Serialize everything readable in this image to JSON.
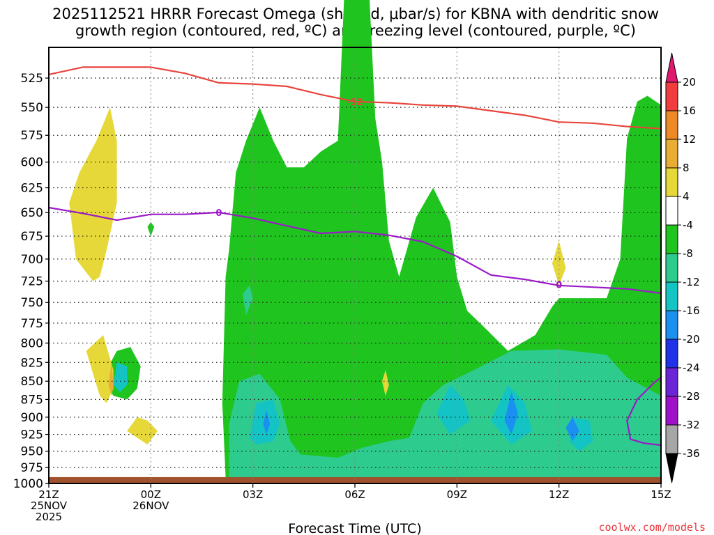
{
  "title": {
    "line1": "2025112521 HRRR Forecast Omega (shaded, μbar/s) for KBNA with dendritic snow",
    "line2": "growth region (contoured, red, ºC) and freezing level (contoured, purple, ºC)"
  },
  "credit": "coolwx.com/models",
  "chart_data": {
    "type": "heatmap",
    "title": "2025112521 HRRR Forecast Omega (shaded, μbar/s) for KBNA with dendritic snow growth region (contoured, red, ºC) and freezing level (contoured, purple, ºC)",
    "xlabel": "Forecast Time (UTC)",
    "ylabel": "",
    "x_range_hours": [
      0,
      18
    ],
    "y_axis": "pressure (mb), inverted",
    "ylim": [
      1000,
      500
    ],
    "grid": true,
    "y_ticks": [
      525,
      550,
      575,
      600,
      625,
      650,
      675,
      700,
      725,
      750,
      775,
      800,
      825,
      850,
      875,
      900,
      925,
      950,
      975,
      1000
    ],
    "x_ticks": [
      {
        "hour": 0,
        "l1": "21Z",
        "l2": "25NOV",
        "l3": "2025"
      },
      {
        "hour": 3,
        "l1": "00Z",
        "l2": "26NOV",
        "l3": ""
      },
      {
        "hour": 6,
        "l1": "03Z",
        "l2": "",
        "l3": ""
      },
      {
        "hour": 9,
        "l1": "06Z",
        "l2": "",
        "l3": ""
      },
      {
        "hour": 12,
        "l1": "09Z",
        "l2": "",
        "l3": ""
      },
      {
        "hour": 15,
        "l1": "12Z",
        "l2": "",
        "l3": ""
      },
      {
        "hour": 18,
        "l1": "15Z",
        "l2": "",
        "l3": ""
      }
    ],
    "colorbar": {
      "labels": [
        "20",
        "16",
        "12",
        "8",
        "4",
        "-4",
        "-8",
        "-12",
        "-16",
        "-20",
        "-24",
        "-28",
        "-32",
        "-36"
      ],
      "bands": [
        {
          "range": "16 to 20",
          "color": "#f03c3c"
        },
        {
          "range": "12 to 16",
          "color": "#ed8a26"
        },
        {
          "range": "8 to 12",
          "color": "#e8ad32"
        },
        {
          "range": "4 to 8",
          "color": "#e6d838"
        },
        {
          "range": "-4 to 4",
          "color": "#ffffff"
        },
        {
          "range": "-8 to -4",
          "color": "#1fc41f"
        },
        {
          "range": "-12 to -8",
          "color": "#2dcb8e"
        },
        {
          "range": "-16 to -12",
          "color": "#14c4c4"
        },
        {
          "range": "-20 to -16",
          "color": "#1a90f0"
        },
        {
          "range": "-24 to -20",
          "color": "#2032e8"
        },
        {
          "range": "-28 to -24",
          "color": "#6b24d6"
        },
        {
          "range": "-32 to -28",
          "color": "#9f10c8"
        },
        {
          "range": "-36 to -32",
          "color": "#a6a6a6"
        }
      ],
      "top_arrow_color": "#e0186e",
      "bottom_arrow_color": "#000000"
    },
    "contours": [
      {
        "label": "-12",
        "color": "#e8453c",
        "points": [
          [
            0,
            522
          ],
          [
            1,
            516
          ],
          [
            3,
            516
          ],
          [
            4,
            521
          ],
          [
            5,
            529
          ],
          [
            6,
            530
          ],
          [
            7,
            532
          ],
          [
            8,
            539
          ],
          [
            9,
            545
          ],
          [
            10,
            546
          ],
          [
            11,
            548
          ],
          [
            12,
            549
          ],
          [
            13,
            553
          ],
          [
            14,
            557
          ],
          [
            15,
            563
          ],
          [
            16,
            564
          ],
          [
            17,
            567
          ],
          [
            18,
            569
          ]
        ]
      },
      {
        "label": "0",
        "color": "#9b19c8",
        "points": [
          [
            0,
            645
          ],
          [
            1,
            651
          ],
          [
            2,
            658
          ],
          [
            3,
            652
          ],
          [
            4,
            652
          ],
          [
            5,
            650
          ],
          [
            6,
            656
          ],
          [
            7,
            664
          ],
          [
            8,
            672
          ],
          [
            9,
            670
          ],
          [
            10,
            674
          ],
          [
            11,
            681
          ],
          [
            12,
            697
          ],
          [
            13,
            718
          ],
          [
            14,
            723
          ],
          [
            15,
            730
          ],
          [
            16,
            732
          ],
          [
            17,
            734
          ],
          [
            18,
            739
          ]
        ]
      },
      {
        "label": "",
        "color": "#9b19c8",
        "points": [
          [
            18,
            845
          ],
          [
            17.8,
            852
          ],
          [
            17.3,
            875
          ],
          [
            17.0,
            905
          ],
          [
            17.1,
            932
          ],
          [
            17.5,
            938
          ],
          [
            18,
            941
          ]
        ]
      }
    ],
    "label_positions": [
      {
        "text": "-12",
        "hour": 9,
        "p": 545,
        "color": "#e8453c"
      },
      {
        "text": "0",
        "hour": 5,
        "p": 650,
        "color": "#9b19c8"
      },
      {
        "text": "0",
        "hour": 15,
        "p": 729,
        "color": "#9b19c8"
      }
    ],
    "shaded_regions": [
      {
        "band": "-8 to -4",
        "color": "#1fc41f",
        "points": [
          [
            5.8,
            1000
          ],
          [
            5.2,
            990
          ],
          [
            5.1,
            880
          ],
          [
            5.2,
            720
          ],
          [
            5.3,
            690
          ],
          [
            5.5,
            610
          ],
          [
            5.8,
            580
          ],
          [
            6.2,
            550
          ],
          [
            6.6,
            580
          ],
          [
            7.0,
            605
          ],
          [
            7.5,
            605
          ],
          [
            8.0,
            590
          ],
          [
            8.5,
            580
          ],
          [
            8.8,
            400
          ],
          [
            9.3,
            400
          ],
          [
            9.6,
            560
          ],
          [
            9.8,
            600
          ],
          [
            10,
            680
          ],
          [
            10.3,
            720
          ],
          [
            10.8,
            655
          ],
          [
            11.3,
            625
          ],
          [
            11.8,
            660
          ],
          [
            12.0,
            720
          ],
          [
            12.3,
            760
          ],
          [
            12.8,
            780
          ],
          [
            13.5,
            810
          ],
          [
            14.3,
            790
          ],
          [
            14.8,
            755
          ],
          [
            15,
            745
          ],
          [
            16.4,
            745
          ],
          [
            16.8,
            700
          ],
          [
            17.0,
            578
          ],
          [
            17.3,
            545
          ],
          [
            17.6,
            540
          ],
          [
            18,
            548
          ],
          [
            18,
            1000
          ]
        ]
      },
      {
        "band": "-8 to -4",
        "color": "#1fc41f",
        "points": [
          [
            3.0,
            660
          ],
          [
            3.1,
            665
          ],
          [
            3.0,
            675
          ],
          [
            2.9,
            665
          ]
        ]
      },
      {
        "band": "-8 to -4",
        "color": "#1fc41f",
        "points": [
          [
            1.7,
            835
          ],
          [
            2.0,
            810
          ],
          [
            2.4,
            805
          ],
          [
            2.7,
            830
          ],
          [
            2.6,
            860
          ],
          [
            2.3,
            875
          ],
          [
            1.9,
            870
          ],
          [
            1.7,
            855
          ]
        ]
      },
      {
        "band": "-12 to -8",
        "color": "#2dcb8e",
        "points": [
          [
            5.3,
            995
          ],
          [
            5.3,
            910
          ],
          [
            5.6,
            850
          ],
          [
            6.2,
            840
          ],
          [
            6.8,
            875
          ],
          [
            7.1,
            935
          ],
          [
            7.4,
            955
          ],
          [
            8.5,
            960
          ],
          [
            9.2,
            945
          ],
          [
            10.0,
            935
          ],
          [
            10.6,
            930
          ],
          [
            11.0,
            880
          ],
          [
            11.6,
            855
          ],
          [
            12.5,
            835
          ],
          [
            13.6,
            810
          ],
          [
            15.0,
            808
          ],
          [
            16.4,
            815
          ],
          [
            17.0,
            845
          ],
          [
            17.6,
            860
          ],
          [
            18,
            870
          ],
          [
            18,
            1000
          ]
        ]
      },
      {
        "band": "-12 to -8",
        "color": "#2dcb8e",
        "points": [
          [
            5.7,
            740
          ],
          [
            5.9,
            730
          ],
          [
            6.0,
            745
          ],
          [
            5.8,
            765
          ]
        ]
      },
      {
        "band": "-16 to -12",
        "color": "#14c4c4",
        "points": [
          [
            5.9,
            930
          ],
          [
            6.1,
            880
          ],
          [
            6.6,
            875
          ],
          [
            6.8,
            910
          ],
          [
            6.6,
            935
          ],
          [
            6.1,
            940
          ]
        ]
      },
      {
        "band": "-16 to -12",
        "color": "#14c4c4",
        "points": [
          [
            11.4,
            895
          ],
          [
            11.8,
            855
          ],
          [
            12.2,
            875
          ],
          [
            12.4,
            905
          ],
          [
            11.8,
            925
          ]
        ]
      },
      {
        "band": "-16 to -12",
        "color": "#14c4c4",
        "points": [
          [
            13.0,
            905
          ],
          [
            13.5,
            855
          ],
          [
            14.0,
            880
          ],
          [
            14.2,
            920
          ],
          [
            13.6,
            940
          ]
        ]
      },
      {
        "band": "-16 to -12",
        "color": "#14c4c4",
        "points": [
          [
            15.3,
            935
          ],
          [
            15.4,
            900
          ],
          [
            15.9,
            905
          ],
          [
            16.0,
            935
          ],
          [
            15.6,
            950
          ]
        ]
      },
      {
        "band": "-16 to -12",
        "color": "#14c4c4",
        "points": [
          [
            1.9,
            855
          ],
          [
            2.0,
            825
          ],
          [
            2.3,
            830
          ],
          [
            2.3,
            855
          ],
          [
            2.1,
            865
          ]
        ]
      },
      {
        "band": "-20 to -16",
        "color": "#1a90f0",
        "points": [
          [
            6.3,
            910
          ],
          [
            6.4,
            890
          ],
          [
            6.5,
            910
          ],
          [
            6.4,
            925
          ]
        ]
      },
      {
        "band": "-20 to -16",
        "color": "#1a90f0",
        "points": [
          [
            13.4,
            905
          ],
          [
            13.6,
            865
          ],
          [
            13.8,
            895
          ],
          [
            13.6,
            925
          ]
        ]
      },
      {
        "band": "-20 to -16",
        "color": "#1a90f0",
        "points": [
          [
            15.2,
            915
          ],
          [
            15.4,
            900
          ],
          [
            15.6,
            920
          ],
          [
            15.4,
            935
          ]
        ]
      },
      {
        "band": "4 to 8",
        "color": "#e6d838",
        "points": [
          [
            1.3,
            725
          ],
          [
            0.8,
            700
          ],
          [
            0.6,
            640
          ],
          [
            0.9,
            610
          ],
          [
            1.4,
            580
          ],
          [
            1.8,
            550
          ],
          [
            2.0,
            580
          ],
          [
            2.0,
            640
          ],
          [
            1.7,
            690
          ],
          [
            1.5,
            720
          ]
        ]
      },
      {
        "band": "4 to 8",
        "color": "#e6d838",
        "points": [
          [
            2.3,
            920
          ],
          [
            2.6,
            900
          ],
          [
            2.9,
            905
          ],
          [
            3.2,
            920
          ],
          [
            2.9,
            940
          ],
          [
            2.6,
            930
          ]
        ]
      },
      {
        "band": "4 to 8",
        "color": "#e6d838",
        "points": [
          [
            1.7,
            880
          ],
          [
            1.9,
            860
          ],
          [
            1.9,
            835
          ],
          [
            1.6,
            790
          ],
          [
            1.1,
            810
          ],
          [
            1.3,
            840
          ],
          [
            1.5,
            870
          ]
        ]
      },
      {
        "band": "4 to 8",
        "color": "#e6d838",
        "points": [
          [
            14.8,
            705
          ],
          [
            15.0,
            680
          ],
          [
            15.2,
            710
          ],
          [
            15.0,
            730
          ]
        ]
      },
      {
        "band": "4 to 8",
        "color": "#e6d838",
        "points": [
          [
            9.8,
            850
          ],
          [
            9.9,
            835
          ],
          [
            10.0,
            855
          ],
          [
            9.9,
            870
          ]
        ]
      },
      {
        "band": "8 to 12",
        "color": "#e8ad32",
        "points": [
          [
            1.75,
            855
          ],
          [
            1.85,
            825
          ],
          [
            1.9,
            855
          ],
          [
            1.85,
            870
          ]
        ]
      }
    ],
    "ground": {
      "color": "#a0522d",
      "from_p": 990,
      "to_p": 1000
    }
  }
}
